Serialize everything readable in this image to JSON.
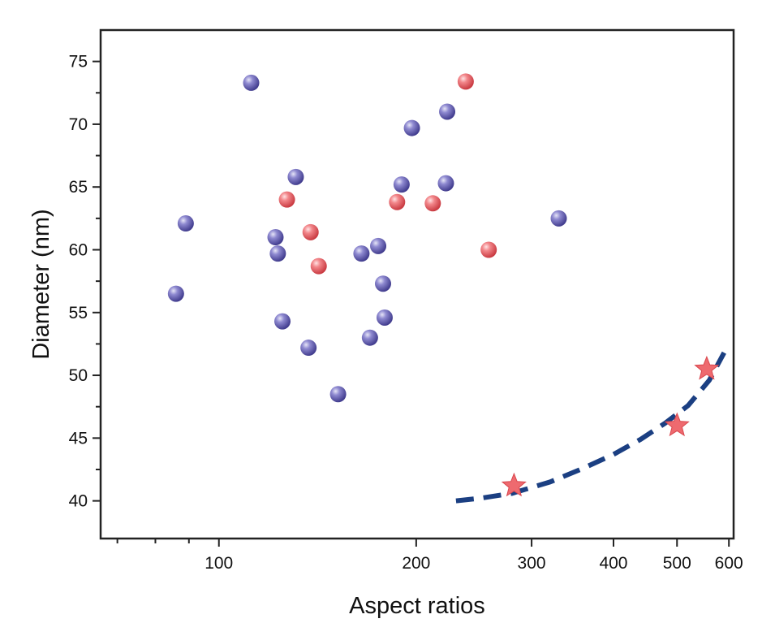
{
  "chart_data": {
    "type": "scatter",
    "xlabel": "Aspect ratios",
    "ylabel": "Diameter (nm)",
    "x_scale": "log",
    "xlim": [
      66,
      610
    ],
    "ylim": [
      37,
      77.5
    ],
    "x_ticks": [
      {
        "value": 100,
        "label": "100"
      },
      {
        "value": 200,
        "label": "200"
      },
      {
        "value": 300,
        "label": "300"
      },
      {
        "value": 400,
        "label": "400"
      },
      {
        "value": 500,
        "label": "500"
      },
      {
        "value": 600,
        "label": "600"
      }
    ],
    "x_minor_ticks": [
      70,
      80,
      90
    ],
    "y_ticks": [
      {
        "value": 40,
        "label": "40"
      },
      {
        "value": 45,
        "label": "45"
      },
      {
        "value": 50,
        "label": "50"
      },
      {
        "value": 55,
        "label": "55"
      },
      {
        "value": 60,
        "label": "60"
      },
      {
        "value": 65,
        "label": "65"
      },
      {
        "value": 70,
        "label": "70"
      },
      {
        "value": 75,
        "label": "75"
      }
    ],
    "y_minor_ticks": [
      42.5,
      47.5,
      52.5,
      57.5,
      62.5,
      67.5,
      72.5
    ],
    "grid": false,
    "series": [
      {
        "marker": "sphere",
        "color": "#6b66b8",
        "points": [
          {
            "x": 86,
            "y": 56.5
          },
          {
            "x": 89,
            "y": 62.1
          },
          {
            "x": 112,
            "y": 73.3
          },
          {
            "x": 122,
            "y": 61.0
          },
          {
            "x": 123,
            "y": 59.7
          },
          {
            "x": 125,
            "y": 54.3
          },
          {
            "x": 131,
            "y": 65.8
          },
          {
            "x": 137,
            "y": 52.2
          },
          {
            "x": 152,
            "y": 48.5
          },
          {
            "x": 165,
            "y": 59.7
          },
          {
            "x": 170,
            "y": 53.0
          },
          {
            "x": 175,
            "y": 60.3
          },
          {
            "x": 178,
            "y": 57.3
          },
          {
            "x": 179,
            "y": 54.6
          },
          {
            "x": 190,
            "y": 65.2
          },
          {
            "x": 197,
            "y": 69.7
          },
          {
            "x": 223,
            "y": 71.0
          },
          {
            "x": 222,
            "y": 65.3
          },
          {
            "x": 330,
            "y": 62.5
          }
        ]
      },
      {
        "marker": "sphere",
        "color": "#ee6a6f",
        "points": [
          {
            "x": 127,
            "y": 64.0
          },
          {
            "x": 138,
            "y": 61.4
          },
          {
            "x": 142,
            "y": 58.7
          },
          {
            "x": 187,
            "y": 63.8
          },
          {
            "x": 212,
            "y": 63.7
          },
          {
            "x": 238,
            "y": 73.4
          },
          {
            "x": 258,
            "y": 60.0
          }
        ]
      },
      {
        "marker": "star",
        "color": "#ee6a6f",
        "points": [
          {
            "x": 282,
            "y": 41.2
          },
          {
            "x": 500,
            "y": 46.0
          },
          {
            "x": 555,
            "y": 50.5
          }
        ]
      }
    ],
    "fit_line": {
      "style": "dashed",
      "color": "#1b3f82",
      "x": [
        230,
        250,
        280,
        320,
        360,
        400,
        440,
        480,
        520,
        560,
        590
      ],
      "y": [
        40.0,
        40.2,
        40.6,
        41.5,
        42.6,
        43.7,
        44.9,
        46.2,
        47.6,
        49.6,
        51.8
      ]
    }
  }
}
